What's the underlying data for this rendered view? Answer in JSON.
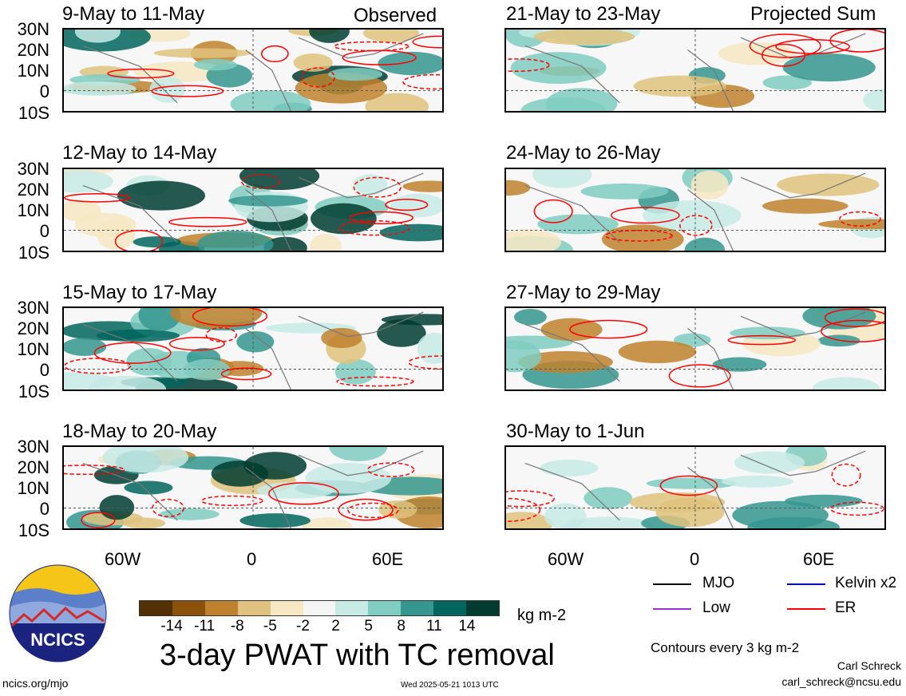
{
  "panels_left": [
    {
      "title": "9-May to 11-May",
      "label": "Observed"
    },
    {
      "title": "12-May to 14-May",
      "label": ""
    },
    {
      "title": "15-May to 17-May",
      "label": ""
    },
    {
      "title": "18-May to 20-May",
      "label": ""
    }
  ],
  "panels_right": [
    {
      "title": "21-May to 23-May",
      "label": "Projected Sum"
    },
    {
      "title": "24-May to 26-May",
      "label": ""
    },
    {
      "title": "27-May to 29-May",
      "label": ""
    },
    {
      "title": "30-May to 1-Jun",
      "label": ""
    }
  ],
  "lat_labels": [
    "30N",
    "20N",
    "10N",
    "0",
    "10S"
  ],
  "lon_labels": [
    "60W",
    "0",
    "60E"
  ],
  "colorbar": {
    "colors": [
      "#543005",
      "#8c510a",
      "#bf812d",
      "#dfc27d",
      "#f6e8c3",
      "#f5f5f5",
      "#c7eae5",
      "#80cdc1",
      "#35978f",
      "#01665e",
      "#003c30"
    ],
    "ticks": [
      "-14",
      "-11",
      "-8",
      "-5",
      "-2",
      "2",
      "5",
      "8",
      "11",
      "14"
    ],
    "units": "kg m-2"
  },
  "legend": [
    {
      "name": "MJO",
      "color": "#000000"
    },
    {
      "name": "Kelvin x2",
      "color": "#0000ff"
    },
    {
      "name": "Low",
      "color": "#9932cc"
    },
    {
      "name": "ER",
      "color": "#ff0000"
    }
  ],
  "main_title": "3-day PWAT with TC removal",
  "contour_note": "Contours every 3 kg m-2",
  "author": "Carl Schreck",
  "email": "carl_schreck@ncsu.edu",
  "site": "ncics.org/mjo",
  "timestamp": "Wed 2025-05-21 1013 UTC",
  "logo_text": "NCICS"
}
